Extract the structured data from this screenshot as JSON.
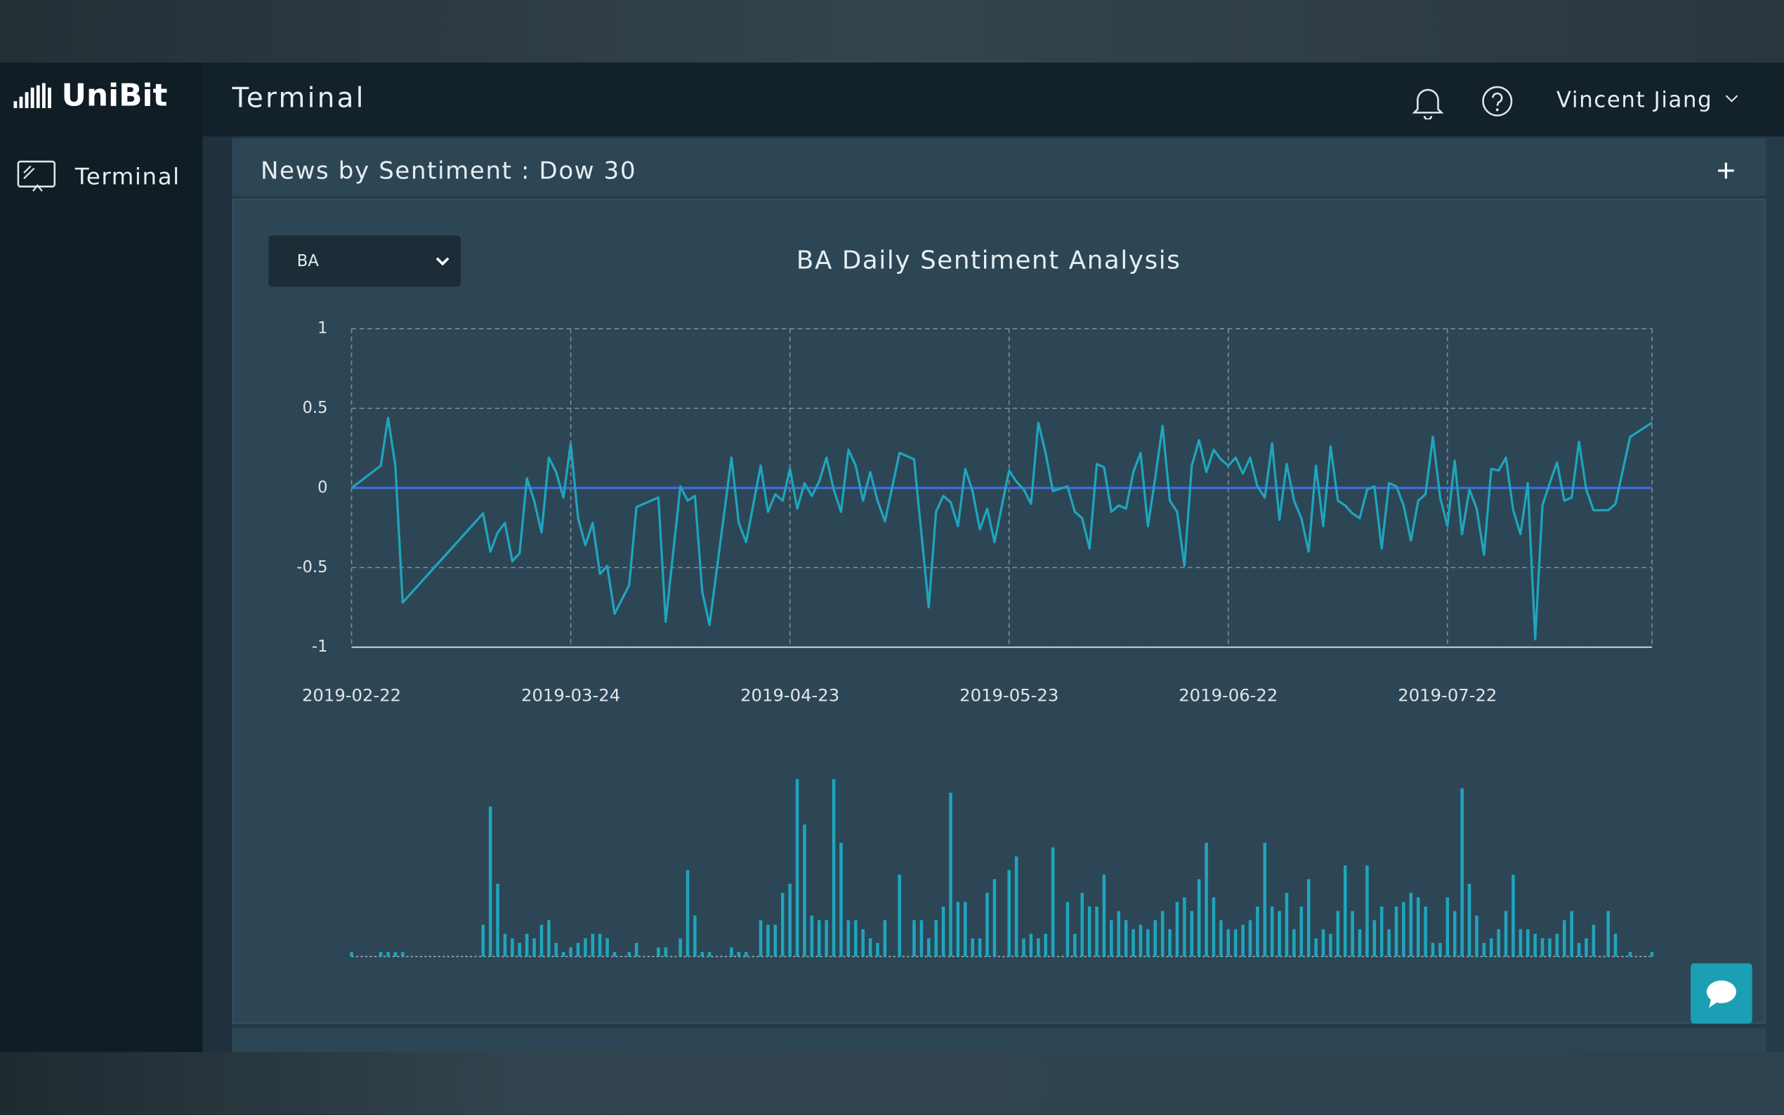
{
  "header": {
    "logo": "UniBit",
    "title": "Terminal",
    "user": "Vincent Jiang"
  },
  "sidebar": {
    "items": [
      "Terminal"
    ]
  },
  "panel": {
    "title": "News by Sentiment : Dow 30",
    "select": "BA"
  },
  "chart_data": [
    {
      "type": "line",
      "title": "BA Daily Sentiment Analysis",
      "color": "#1fa5bd",
      "hline": {
        "value": 0,
        "color": "#3d6fe0"
      },
      "grid": true,
      "xlim": [
        "2019-02-22",
        "2019-08-19"
      ],
      "xticks": [
        "2019-02-22",
        "2019-03-24",
        "2019-04-23",
        "2019-05-23",
        "2019-06-22",
        "2019-07-22"
      ],
      "ylim": [
        -1,
        1
      ],
      "yticks": [
        1,
        0.5,
        0,
        -0.5,
        -1
      ],
      "x": [
        "2019-02-22",
        "2019-02-26",
        "2019-02-27",
        "2019-02-28",
        "2019-03-01",
        "2019-03-12",
        "2019-03-13",
        "2019-03-14",
        "2019-03-15",
        "2019-03-16",
        "2019-03-17",
        "2019-03-18",
        "2019-03-19",
        "2019-03-20",
        "2019-03-21",
        "2019-03-22",
        "2019-03-23",
        "2019-03-24",
        "2019-03-25",
        "2019-03-26",
        "2019-03-27",
        "2019-03-28",
        "2019-03-29",
        "2019-03-30",
        "2019-04-01",
        "2019-04-02",
        "2019-04-05",
        "2019-04-06",
        "2019-04-08",
        "2019-04-09",
        "2019-04-10",
        "2019-04-11",
        "2019-04-12",
        "2019-04-15",
        "2019-04-16",
        "2019-04-17",
        "2019-04-19",
        "2019-04-20",
        "2019-04-21",
        "2019-04-22",
        "2019-04-23",
        "2019-04-24",
        "2019-04-25",
        "2019-04-26",
        "2019-04-27",
        "2019-04-28",
        "2019-04-29",
        "2019-04-30",
        "2019-05-01",
        "2019-05-02",
        "2019-05-03",
        "2019-05-04",
        "2019-05-05",
        "2019-05-06",
        "2019-05-08",
        "2019-05-10",
        "2019-05-11",
        "2019-05-12",
        "2019-05-13",
        "2019-05-14",
        "2019-05-15",
        "2019-05-16",
        "2019-05-17",
        "2019-05-18",
        "2019-05-19",
        "2019-05-20",
        "2019-05-21",
        "2019-05-23",
        "2019-05-24",
        "2019-05-25",
        "2019-05-26",
        "2019-05-27",
        "2019-05-28",
        "2019-05-29",
        "2019-05-31",
        "2019-06-01",
        "2019-06-02",
        "2019-06-03",
        "2019-06-04",
        "2019-06-05",
        "2019-06-06",
        "2019-06-07",
        "2019-06-08",
        "2019-06-09",
        "2019-06-10",
        "2019-06-11",
        "2019-06-12",
        "2019-06-13",
        "2019-06-14",
        "2019-06-15",
        "2019-06-16",
        "2019-06-17",
        "2019-06-18",
        "2019-06-19",
        "2019-06-20",
        "2019-06-21",
        "2019-06-22",
        "2019-06-23",
        "2019-06-24",
        "2019-06-25",
        "2019-06-26",
        "2019-06-27",
        "2019-06-28",
        "2019-06-29",
        "2019-06-30",
        "2019-07-01",
        "2019-07-02",
        "2019-07-03",
        "2019-07-04",
        "2019-07-05",
        "2019-07-06",
        "2019-07-07",
        "2019-07-08",
        "2019-07-09",
        "2019-07-10",
        "2019-07-11",
        "2019-07-12",
        "2019-07-13",
        "2019-07-14",
        "2019-07-15",
        "2019-07-16",
        "2019-07-17",
        "2019-07-18",
        "2019-07-19",
        "2019-07-20",
        "2019-07-21",
        "2019-07-22",
        "2019-07-23",
        "2019-07-24",
        "2019-07-25",
        "2019-07-26",
        "2019-07-27",
        "2019-07-28",
        "2019-07-29",
        "2019-07-30",
        "2019-07-31",
        "2019-08-01",
        "2019-08-02",
        "2019-08-03",
        "2019-08-04",
        "2019-08-05",
        "2019-08-06",
        "2019-08-07",
        "2019-08-08",
        "2019-08-09",
        "2019-08-10",
        "2019-08-11",
        "2019-08-13",
        "2019-08-14",
        "2019-08-16",
        "2019-08-19"
      ],
      "values": [
        0,
        0.14,
        0.44,
        0.14,
        -0.72,
        -0.16,
        -0.4,
        -0.28,
        -0.22,
        -0.46,
        -0.41,
        0.06,
        -0.08,
        -0.28,
        0.19,
        0.1,
        -0.06,
        0.28,
        -0.19,
        -0.36,
        -0.22,
        -0.54,
        -0.49,
        -0.79,
        -0.61,
        -0.12,
        -0.06,
        -0.84,
        0.01,
        -0.08,
        -0.05,
        -0.65,
        -0.86,
        0.19,
        -0.22,
        -0.34,
        0.14,
        -0.15,
        -0.04,
        -0.08,
        0.12,
        -0.13,
        0.03,
        -0.05,
        0.04,
        0.19,
        -0.01,
        -0.15,
        0.24,
        0.14,
        -0.08,
        0.1,
        -0.08,
        -0.21,
        0.22,
        0.18,
        -0.29,
        -0.75,
        -0.15,
        -0.05,
        -0.09,
        -0.24,
        0.12,
        -0.02,
        -0.26,
        -0.13,
        -0.34,
        0.11,
        0.04,
        -0.01,
        -0.1,
        0.41,
        0.22,
        -0.02,
        0.01,
        -0.15,
        -0.19,
        -0.38,
        0.15,
        0.13,
        -0.15,
        -0.11,
        -0.13,
        0.1,
        0.22,
        -0.24,
        0.06,
        0.39,
        -0.08,
        -0.15,
        -0.49,
        0.14,
        0.3,
        0.1,
        0.24,
        0.18,
        0.14,
        0.19,
        0.09,
        0.19,
        0.01,
        -0.06,
        0.28,
        -0.2,
        0.15,
        -0.08,
        -0.19,
        -0.4,
        0.14,
        -0.24,
        0.26,
        -0.08,
        -0.11,
        -0.16,
        -0.19,
        -0.01,
        0.01,
        -0.38,
        0.03,
        0.01,
        -0.11,
        -0.33,
        -0.08,
        -0.04,
        0.32,
        -0.06,
        -0.24,
        0.17,
        -0.29,
        -0.01,
        -0.13,
        -0.42,
        0.12,
        0.11,
        0.19,
        -0.14,
        -0.29,
        0.03,
        -0.95,
        -0.11,
        0.03,
        0.16,
        -0.08,
        -0.06,
        0.29,
        -0.01,
        -0.14,
        -0.14,
        -0.1,
        0.32,
        0.41
      ]
    },
    {
      "type": "bar",
      "color": "#1fa5bd",
      "xlim": [
        "2019-02-22",
        "2019-08-19"
      ],
      "x": [
        "2019-02-22",
        "2019-02-26",
        "2019-02-27",
        "2019-02-28",
        "2019-03-01",
        "2019-03-12",
        "2019-03-13",
        "2019-03-14",
        "2019-03-15",
        "2019-03-16",
        "2019-03-17",
        "2019-03-18",
        "2019-03-19",
        "2019-03-20",
        "2019-03-21",
        "2019-03-22",
        "2019-03-23",
        "2019-03-24",
        "2019-03-25",
        "2019-03-26",
        "2019-03-27",
        "2019-03-28",
        "2019-03-29",
        "2019-03-30",
        "2019-04-01",
        "2019-04-02",
        "2019-04-05",
        "2019-04-06",
        "2019-04-08",
        "2019-04-09",
        "2019-04-10",
        "2019-04-11",
        "2019-04-12",
        "2019-04-15",
        "2019-04-16",
        "2019-04-17",
        "2019-04-19",
        "2019-04-20",
        "2019-04-21",
        "2019-04-22",
        "2019-04-23",
        "2019-04-24",
        "2019-04-25",
        "2019-04-26",
        "2019-04-27",
        "2019-04-28",
        "2019-04-29",
        "2019-04-30",
        "2019-05-01",
        "2019-05-02",
        "2019-05-03",
        "2019-05-04",
        "2019-05-05",
        "2019-05-06",
        "2019-05-08",
        "2019-05-10",
        "2019-05-11",
        "2019-05-12",
        "2019-05-13",
        "2019-05-14",
        "2019-05-15",
        "2019-05-16",
        "2019-05-17",
        "2019-05-18",
        "2019-05-19",
        "2019-05-20",
        "2019-05-21",
        "2019-05-23",
        "2019-05-24",
        "2019-05-25",
        "2019-05-26",
        "2019-05-27",
        "2019-05-28",
        "2019-05-29",
        "2019-05-31",
        "2019-06-01",
        "2019-06-02",
        "2019-06-03",
        "2019-06-04",
        "2019-06-05",
        "2019-06-06",
        "2019-06-07",
        "2019-06-08",
        "2019-06-09",
        "2019-06-10",
        "2019-06-11",
        "2019-06-12",
        "2019-06-13",
        "2019-06-14",
        "2019-06-15",
        "2019-06-16",
        "2019-06-17",
        "2019-06-18",
        "2019-06-19",
        "2019-06-20",
        "2019-06-21",
        "2019-06-22",
        "2019-06-23",
        "2019-06-24",
        "2019-06-25",
        "2019-06-26",
        "2019-06-27",
        "2019-06-28",
        "2019-06-29",
        "2019-06-30",
        "2019-07-01",
        "2019-07-02",
        "2019-07-03",
        "2019-07-04",
        "2019-07-05",
        "2019-07-06",
        "2019-07-07",
        "2019-07-08",
        "2019-07-09",
        "2019-07-10",
        "2019-07-11",
        "2019-07-12",
        "2019-07-13",
        "2019-07-14",
        "2019-07-15",
        "2019-07-16",
        "2019-07-17",
        "2019-07-18",
        "2019-07-19",
        "2019-07-20",
        "2019-07-21",
        "2019-07-22",
        "2019-07-23",
        "2019-07-24",
        "2019-07-25",
        "2019-07-26",
        "2019-07-27",
        "2019-07-28",
        "2019-07-29",
        "2019-07-30",
        "2019-07-31",
        "2019-08-01",
        "2019-08-02",
        "2019-08-03",
        "2019-08-04",
        "2019-08-05",
        "2019-08-06",
        "2019-08-07",
        "2019-08-08",
        "2019-08-09",
        "2019-08-10",
        "2019-08-11",
        "2019-08-13",
        "2019-08-14",
        "2019-08-16",
        "2019-08-19"
      ],
      "values": [
        1,
        1,
        1,
        1,
        1,
        7,
        33,
        16,
        5,
        4,
        3,
        5,
        4,
        7,
        8,
        3,
        1,
        2,
        3,
        4,
        5,
        5,
        4,
        1,
        1,
        3,
        2,
        2,
        4,
        19,
        9,
        1,
        1,
        2,
        1,
        1,
        8,
        7,
        7,
        14,
        16,
        39,
        29,
        9,
        8,
        8,
        39,
        25,
        8,
        8,
        6,
        4,
        3,
        8,
        18,
        8,
        8,
        4,
        8,
        11,
        36,
        12,
        12,
        4,
        4,
        14,
        17,
        19,
        22,
        4,
        5,
        4,
        5,
        24,
        12,
        5,
        14,
        11,
        11,
        18,
        8,
        10,
        8,
        6,
        7,
        6,
        8,
        10,
        6,
        12,
        13,
        10,
        17,
        25,
        13,
        8,
        6,
        6,
        7,
        8,
        11,
        25,
        11,
        10,
        14,
        6,
        11,
        17,
        4,
        6,
        5,
        10,
        20,
        10,
        6,
        20,
        8,
        11,
        6,
        11,
        12,
        14,
        13,
        11,
        3,
        3,
        13,
        10,
        37,
        16,
        9,
        3,
        4,
        6,
        10,
        18,
        6,
        6,
        5,
        4,
        4,
        5,
        8,
        10,
        3,
        4,
        7,
        10,
        5,
        1,
        1
      ]
    }
  ]
}
